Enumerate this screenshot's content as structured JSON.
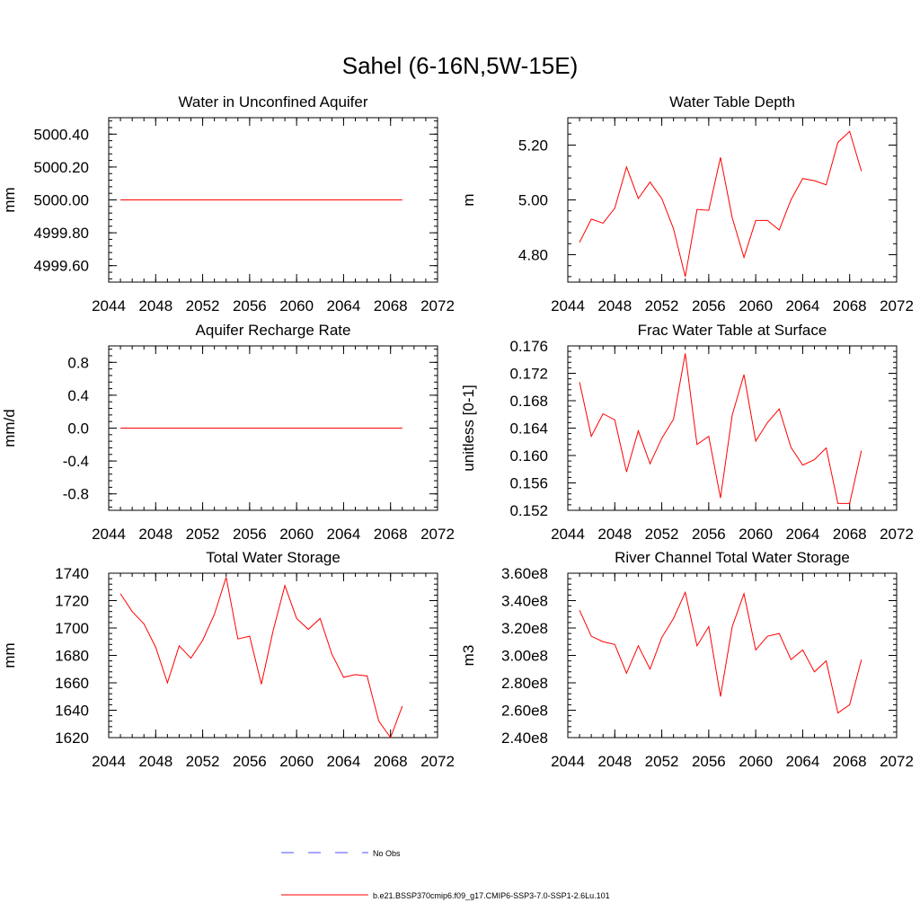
{
  "figure": {
    "title": "Sahel (6-16N,5W-15E)"
  },
  "legend": {
    "entries": [
      {
        "label": "No Obs",
        "color": "#4d4dff",
        "style": "dashed"
      },
      {
        "label": "b.e21.BSSP370cmip6.f09_g17.CMIP6-SSP3-7.0-SSP1-2.6Lu.101",
        "color": "#ff0000",
        "style": "solid"
      }
    ]
  },
  "chart_data": [
    {
      "type": "line",
      "title": "Water in Unconfined Aquifer",
      "xlabel": "",
      "ylabel": "mm",
      "xlim": [
        2044,
        2072
      ],
      "ylim": [
        4999.5,
        5000.5
      ],
      "xticks": [
        2044,
        2048,
        2052,
        2056,
        2060,
        2064,
        2068,
        2072
      ],
      "xtick_labels": [
        "2044",
        "2048",
        "2052",
        "2056",
        "2060",
        "2064",
        "2068",
        "2072"
      ],
      "yticks": [
        4999.6,
        4999.8,
        5000.0,
        5000.2,
        5000.4
      ],
      "ytick_labels": [
        "4999.60",
        "4999.80",
        "5000.00",
        "5000.20",
        "5000.40"
      ],
      "x": [
        2045,
        2046,
        2047,
        2048,
        2049,
        2050,
        2051,
        2052,
        2053,
        2054,
        2055,
        2056,
        2057,
        2058,
        2059,
        2060,
        2061,
        2062,
        2063,
        2064,
        2065,
        2066,
        2067,
        2068,
        2069
      ],
      "series": [
        {
          "color": "#ff0000",
          "values": [
            5000,
            5000,
            5000,
            5000,
            5000,
            5000,
            5000,
            5000,
            5000,
            5000,
            5000,
            5000,
            5000,
            5000,
            5000,
            5000,
            5000,
            5000,
            5000,
            5000,
            5000,
            5000,
            5000,
            5000,
            5000
          ]
        }
      ]
    },
    {
      "type": "line",
      "title": "Water Table Depth",
      "xlabel": "",
      "ylabel": "m",
      "xlim": [
        2044,
        2072
      ],
      "ylim": [
        4.7,
        5.3
      ],
      "xticks": [
        2044,
        2048,
        2052,
        2056,
        2060,
        2064,
        2068,
        2072
      ],
      "xtick_labels": [
        "2044",
        "2048",
        "2052",
        "2056",
        "2060",
        "2064",
        "2068",
        "2072"
      ],
      "yticks": [
        4.8,
        5.0,
        5.2
      ],
      "ytick_labels": [
        "4.80",
        "5.00",
        "5.20"
      ],
      "x": [
        2045,
        2046,
        2047,
        2048,
        2049,
        2050,
        2051,
        2052,
        2053,
        2054,
        2055,
        2056,
        2057,
        2058,
        2059,
        2060,
        2061,
        2062,
        2063,
        2064,
        2065,
        2066,
        2067,
        2068,
        2069
      ],
      "series": [
        {
          "color": "#ff0000",
          "values": [
            4.845,
            4.93,
            4.915,
            4.97,
            5.12,
            5.005,
            5.065,
            5.005,
            4.895,
            4.72,
            4.965,
            4.962,
            5.155,
            4.935,
            4.79,
            4.925,
            4.925,
            4.89,
            5.0,
            5.078,
            5.07,
            5.055,
            5.21,
            5.25,
            5.105
          ]
        }
      ]
    },
    {
      "type": "line",
      "title": "Aquifer Recharge Rate",
      "xlabel": "",
      "ylabel": "mm/d",
      "xlim": [
        2044,
        2072
      ],
      "ylim": [
        -1.0,
        1.0
      ],
      "xticks": [
        2044,
        2048,
        2052,
        2056,
        2060,
        2064,
        2068,
        2072
      ],
      "xtick_labels": [
        "2044",
        "2048",
        "2052",
        "2056",
        "2060",
        "2064",
        "2068",
        "2072"
      ],
      "yticks": [
        -0.8,
        -0.4,
        0.0,
        0.4,
        0.8
      ],
      "ytick_labels": [
        "-0.8",
        "-0.4",
        "0.0",
        "0.4",
        "0.8"
      ],
      "x": [
        2045,
        2046,
        2047,
        2048,
        2049,
        2050,
        2051,
        2052,
        2053,
        2054,
        2055,
        2056,
        2057,
        2058,
        2059,
        2060,
        2061,
        2062,
        2063,
        2064,
        2065,
        2066,
        2067,
        2068,
        2069
      ],
      "series": [
        {
          "color": "#ff0000",
          "values": [
            0,
            0,
            0,
            0,
            0,
            0,
            0,
            0,
            0,
            0,
            0,
            0,
            0,
            0,
            0,
            0,
            0,
            0,
            0,
            0,
            0,
            0,
            0,
            0,
            0
          ]
        }
      ]
    },
    {
      "type": "line",
      "title": "Frac Water Table at Surface",
      "xlabel": "",
      "ylabel": "unitless [0-1]",
      "xlim": [
        2044,
        2072
      ],
      "ylim": [
        0.152,
        0.176
      ],
      "xticks": [
        2044,
        2048,
        2052,
        2056,
        2060,
        2064,
        2068,
        2072
      ],
      "xtick_labels": [
        "2044",
        "2048",
        "2052",
        "2056",
        "2060",
        "2064",
        "2068",
        "2072"
      ],
      "yticks": [
        0.152,
        0.156,
        0.16,
        0.164,
        0.168,
        0.172,
        0.176
      ],
      "ytick_labels": [
        "0.152",
        "0.156",
        "0.160",
        "0.164",
        "0.168",
        "0.172",
        "0.176"
      ],
      "x": [
        2045,
        2046,
        2047,
        2048,
        2049,
        2050,
        2051,
        2052,
        2053,
        2054,
        2055,
        2056,
        2057,
        2058,
        2059,
        2060,
        2061,
        2062,
        2063,
        2064,
        2065,
        2066,
        2067,
        2068,
        2069
      ],
      "series": [
        {
          "color": "#ff0000",
          "values": [
            0.1707,
            0.1628,
            0.1661,
            0.1652,
            0.1576,
            0.1636,
            0.1588,
            0.1625,
            0.1653,
            0.1749,
            0.1616,
            0.1628,
            0.1538,
            0.1659,
            0.1718,
            0.1621,
            0.1648,
            0.1668,
            0.1612,
            0.1586,
            0.1594,
            0.1611,
            0.153,
            0.153,
            0.1607
          ]
        }
      ]
    },
    {
      "type": "line",
      "title": "Total Water Storage",
      "xlabel": "",
      "ylabel": "mm",
      "xlim": [
        2044,
        2072
      ],
      "ylim": [
        1620,
        1740
      ],
      "xticks": [
        2044,
        2048,
        2052,
        2056,
        2060,
        2064,
        2068,
        2072
      ],
      "xtick_labels": [
        "2044",
        "2048",
        "2052",
        "2056",
        "2060",
        "2064",
        "2068",
        "2072"
      ],
      "yticks": [
        1620,
        1640,
        1660,
        1680,
        1700,
        1720,
        1740
      ],
      "ytick_labels": [
        "1620",
        "1640",
        "1660",
        "1680",
        "1700",
        "1720",
        "1740"
      ],
      "x": [
        2045,
        2046,
        2047,
        2048,
        2049,
        2050,
        2051,
        2052,
        2053,
        2054,
        2055,
        2056,
        2057,
        2058,
        2059,
        2060,
        2061,
        2062,
        2063,
        2064,
        2065,
        2066,
        2067,
        2068,
        2069
      ],
      "series": [
        {
          "color": "#ff0000",
          "values": [
            1725,
            1712,
            1703,
            1686,
            1660,
            1687,
            1678,
            1691,
            1710,
            1737,
            1692,
            1694,
            1659,
            1698,
            1731,
            1707,
            1699,
            1707,
            1681,
            1664,
            1666,
            1665,
            1632,
            1620,
            1643
          ]
        }
      ]
    },
    {
      "type": "line",
      "title": "River Channel Total Water Storage",
      "xlabel": "",
      "ylabel": "m3",
      "xlim": [
        2044,
        2072
      ],
      "ylim": [
        240000000,
        360000000
      ],
      "xticks": [
        2044,
        2048,
        2052,
        2056,
        2060,
        2064,
        2068,
        2072
      ],
      "xtick_labels": [
        "2044",
        "2048",
        "2052",
        "2056",
        "2060",
        "2064",
        "2068",
        "2072"
      ],
      "yticks": [
        240000000,
        260000000,
        280000000,
        300000000,
        320000000,
        340000000,
        360000000
      ],
      "ytick_labels": [
        "2.40e8",
        "2.60e8",
        "2.80e8",
        "3.00e8",
        "3.20e8",
        "3.40e8",
        "3.60e8"
      ],
      "x": [
        2045,
        2046,
        2047,
        2048,
        2049,
        2050,
        2051,
        2052,
        2053,
        2054,
        2055,
        2056,
        2057,
        2058,
        2059,
        2060,
        2061,
        2062,
        2063,
        2064,
        2065,
        2066,
        2067,
        2068,
        2069
      ],
      "series": [
        {
          "color": "#ff0000",
          "values": [
            333000000,
            314000000,
            310000000,
            308000000,
            287000000,
            307000000,
            290000000,
            313000000,
            327000000,
            346000000,
            307000000,
            321000000,
            270000000,
            321000000,
            345000000,
            304000000,
            314000000,
            316000000,
            297000000,
            304000000,
            288000000,
            296000000,
            258000000,
            264000000,
            297000000
          ]
        }
      ]
    }
  ]
}
